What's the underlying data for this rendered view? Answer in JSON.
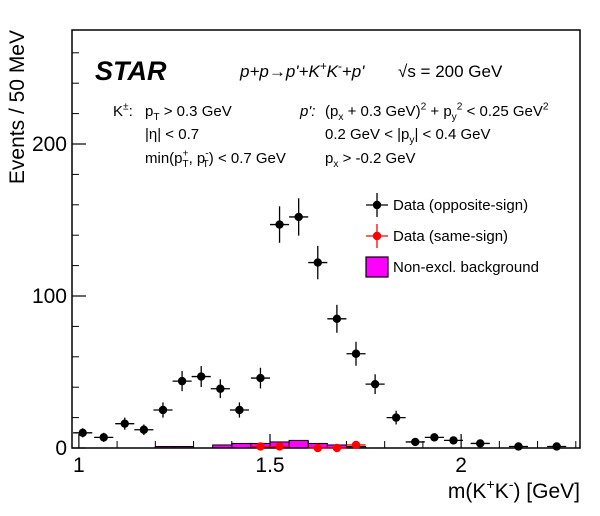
{
  "chart_data": {
    "type": "errorbar",
    "x_label": [
      "m(K",
      {
        "sup": "+"
      },
      "K",
      {
        "sup": "-"
      },
      ") [GeV]"
    ],
    "y_label": "Events / 50 MeV",
    "annotations": [
      [
        "STAR"
      ],
      [
        "p+p→p'+K",
        {
          "sup": "+"
        },
        "K",
        {
          "sup": "-"
        },
        "+p'"
      ],
      [
        "√s = 200 GeV"
      ],
      [
        "K",
        {
          "sup": "±"
        },
        ":"
      ],
      [
        "p",
        {
          "sub": "T"
        },
        " > 0.3 GeV"
      ],
      [
        "|η| < 0.7"
      ],
      [
        "min(p",
        {
          "sup": "+"
        },
        {
          "sub": "T"
        },
        ", p",
        {
          "sup": "-"
        },
        {
          "sub": "T"
        },
        ") < 0.7 GeV"
      ],
      [
        "p':"
      ],
      [
        "(p",
        {
          "sub": "x"
        },
        " + 0.3 GeV)",
        {
          "sup": "2"
        },
        " + p",
        {
          "sub": "y"
        },
        {
          "sup": "2"
        },
        " < 0.25 GeV",
        {
          "sup": "2"
        }
      ],
      [
        "0.2 GeV < |p",
        {
          "sub": "y"
        },
        "| < 0.4 GeV"
      ],
      [
        "p",
        {
          "sub": "x"
        },
        " > -0.2 GeV"
      ]
    ],
    "xlim": [
      0.982,
      2.311
    ],
    "ylim": [
      0,
      275
    ],
    "xticks": [
      1,
      1.5,
      2
    ],
    "yticks": [
      0,
      100,
      200
    ],
    "xminor_ticks": [
      1.1,
      1.2,
      1.3,
      1.4,
      1.6,
      1.7,
      1.8,
      1.9,
      2.1,
      2.2,
      2.3
    ],
    "yminor_ticks": [
      20,
      40,
      60,
      80,
      120,
      140,
      160,
      180,
      220,
      240,
      260
    ],
    "series": [
      {
        "name": "Data (opposite-sign)",
        "color": "#000000",
        "xerr": 0.025,
        "x": [
          1.01,
          1.065,
          1.12,
          1.17,
          1.22,
          1.27,
          1.32,
          1.37,
          1.42,
          1.475,
          1.525,
          1.575,
          1.625,
          1.675,
          1.725,
          1.775,
          1.83,
          1.88,
          1.93,
          1.98,
          2.05,
          2.15,
          2.25
        ],
        "values": [
          10,
          7,
          16,
          12,
          25,
          44,
          47,
          39,
          25,
          46,
          147,
          152,
          122,
          85,
          62,
          42,
          20,
          4,
          7,
          5,
          3,
          1,
          1
        ],
        "errors": [
          3,
          3,
          4,
          3.5,
          5,
          6.6,
          6.9,
          6.2,
          5,
          6.8,
          12,
          12.3,
          11,
          9.2,
          7.9,
          6.5,
          4.5,
          2,
          2.6,
          2.2,
          1.7,
          1,
          1
        ]
      },
      {
        "name": "Data (same-sign)",
        "color": "#ff0000",
        "xerr": 0.025,
        "x": [
          1.475,
          1.525,
          1.625,
          1.675,
          1.725
        ],
        "values": [
          1,
          1,
          0,
          0,
          2
        ],
        "errors": [
          1,
          1,
          0,
          0,
          1.4
        ]
      }
    ],
    "background": {
      "name": "Non-excl. background",
      "color": "#ff00ff",
      "bins": [
        1.2,
        1.25,
        1.3,
        1.35,
        1.4,
        1.45,
        1.5,
        1.55,
        1.6,
        1.65,
        1.7,
        1.75
      ],
      "counts": [
        1,
        1,
        0,
        2,
        3,
        3,
        4,
        5,
        3,
        2,
        1
      ]
    }
  }
}
